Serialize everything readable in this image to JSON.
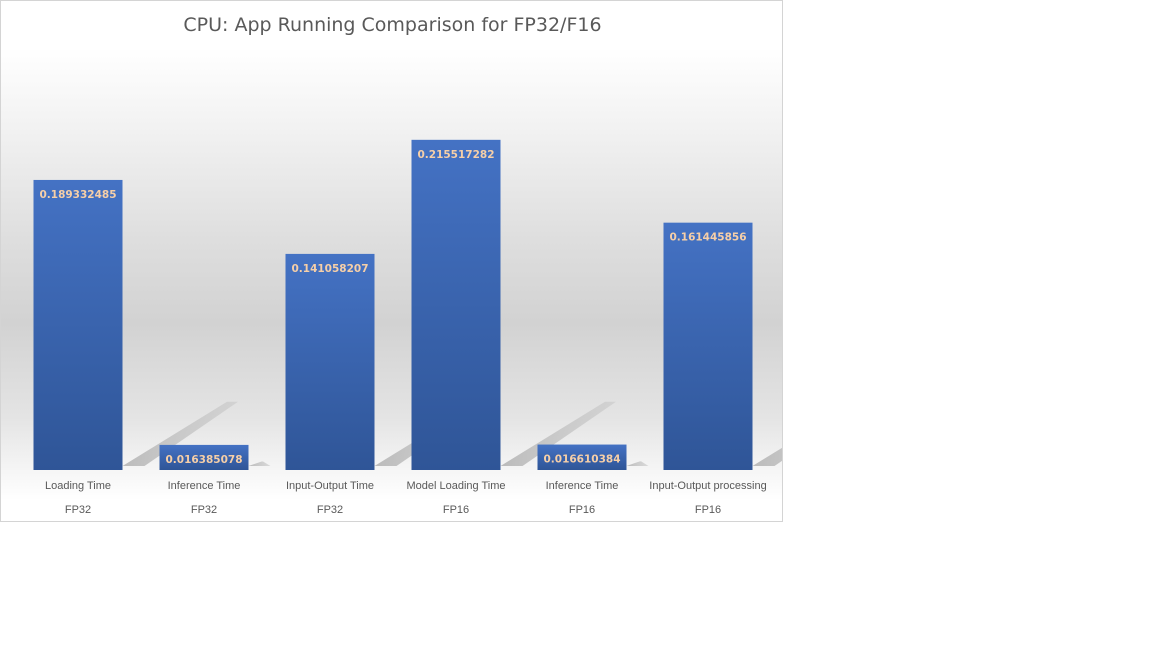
{
  "chart_data": {
    "type": "bar",
    "title": "CPU: App Running Comparison for FP32/F16",
    "categories": [
      {
        "label": "Loading Time",
        "group": "FP32"
      },
      {
        "label": "Inference Time",
        "group": "FP32"
      },
      {
        "label": "Input-Output Time",
        "group": "FP32"
      },
      {
        "label": "Model Loading Time",
        "group": "FP16"
      },
      {
        "label": "Inference Time",
        "group": "FP16"
      },
      {
        "label": "Input-Output processing",
        "group": "FP16"
      }
    ],
    "values": [
      0.189332485,
      0.016385078,
      0.141058207,
      0.215517282,
      0.016610384,
      0.161445856
    ],
    "data_labels": [
      "0.189332485",
      "0.016385078",
      "0.141058207",
      "0.215517282",
      "0.016610384",
      "0.161445856"
    ],
    "ylim": [
      0,
      0.25
    ],
    "grid": false,
    "legend": "none",
    "bar_color_top": "#4472c4",
    "bar_color_bottom": "#2f5597",
    "data_label_color": "#f6cfa8"
  }
}
